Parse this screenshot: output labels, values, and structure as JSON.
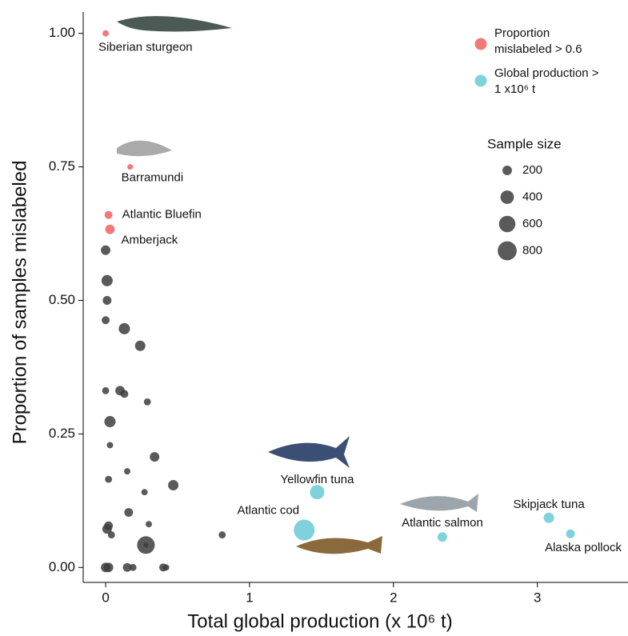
{
  "chart_data": {
    "type": "scatter",
    "xlabel": "Total global production (x 10⁶ t)",
    "ylabel": "Proportion of samples mislabeled",
    "xlim": [
      -0.156,
      3.63
    ],
    "ylim": [
      -0.028,
      1.04
    ],
    "xticks": [
      0,
      1,
      2,
      3
    ],
    "yticks": [
      {
        "value": 0,
        "label": "0.00"
      },
      {
        "value": 0.25,
        "label": "0.25"
      },
      {
        "value": 0.5,
        "label": "0.50"
      },
      {
        "value": 0.75,
        "label": "0.75"
      },
      {
        "value": 1,
        "label": "1.00"
      }
    ],
    "size_title": "Sample size",
    "size_legend": [
      200,
      400,
      600,
      800
    ],
    "series": [
      {
        "name": "Proportion mislabeled > 0.6",
        "color": "#f07a78",
        "x": [
          0,
          0.17,
          0.02,
          0.03
        ],
        "values": [
          1.0,
          0.75,
          0.66,
          0.633
        ],
        "sizes": [
          90,
          70,
          140,
          200
        ],
        "labels": [
          "Siberian sturgeon",
          "Barramundi",
          "Atlantic Bluefin",
          "Amberjack"
        ]
      },
      {
        "name": "Global production > 1 x10⁶ t",
        "color": "#7fd1dc",
        "x": [
          1.47,
          1.38,
          2.34,
          3.08,
          3.23
        ],
        "values": [
          0.141,
          0.07,
          0.057,
          0.093,
          0.063
        ],
        "sizes": [
          460,
          960,
          200,
          240,
          170
        ],
        "labels": [
          "Yellowfin tuna",
          "Atlantic cod",
          "Atlantic salmon",
          "Skipjack tuna",
          "Alaska pollock"
        ]
      },
      {
        "color": "#3d3d3d",
        "x": [
          0,
          0.01,
          0.01,
          0,
          0.13,
          0.24,
          0,
          0.1,
          0.13,
          0.29,
          0.03,
          0.03,
          0.34,
          0.15,
          0.02,
          0.47,
          0.27,
          0.16,
          0.3,
          0.02,
          0.01,
          0.04,
          0.81,
          0.28,
          0.28,
          0,
          0.02,
          0.15,
          0.19,
          0.4,
          0.42
        ],
        "values": [
          0.594,
          0.537,
          0.5,
          0.463,
          0.447,
          0.415,
          0.331,
          0.331,
          0.325,
          0.31,
          0.273,
          0.229,
          0.207,
          0.18,
          0.165,
          0.154,
          0.141,
          0.103,
          0.081,
          0.078,
          0.072,
          0.061,
          0.061,
          0.042,
          0.042,
          0,
          0,
          0,
          0,
          0,
          0
        ],
        "sizes": [
          200,
          280,
          170,
          140,
          280,
          240,
          110,
          200,
          140,
          110,
          280,
          90,
          200,
          90,
          110,
          240,
          90,
          170,
          90,
          170,
          200,
          110,
          110,
          690,
          60,
          200,
          200,
          170,
          110,
          140,
          90
        ]
      }
    ]
  }
}
